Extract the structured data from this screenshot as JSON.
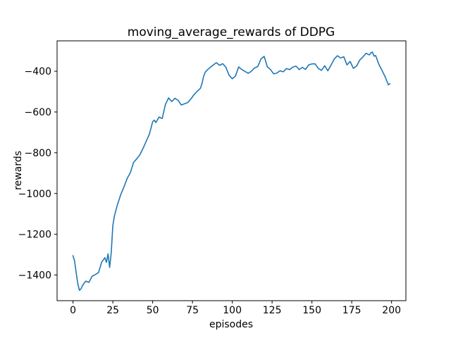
{
  "chart_data": {
    "type": "line",
    "title": "moving_average_rewards of DDPG",
    "xlabel": "episodes",
    "ylabel": "rewards",
    "x_ticks": [
      0,
      25,
      50,
      75,
      100,
      125,
      150,
      175,
      200
    ],
    "y_ticks": [
      -1400,
      -1200,
      -1000,
      -800,
      -600,
      -400
    ],
    "xlim": [
      -10,
      209
    ],
    "ylim": [
      -1526,
      -251
    ],
    "axes_rect": [
      81,
      58,
      576,
      427
    ],
    "grid": false,
    "legend": "none",
    "line_color": "#1f77b4",
    "line_width": 1.6,
    "background_color": "#ffffff",
    "series": [
      {
        "name": "moving_average_rewards",
        "x": [
          0,
          1,
          2,
          3,
          4,
          5,
          6,
          7,
          8,
          10,
          12,
          14,
          16,
          18,
          20,
          21,
          22,
          23,
          24,
          25,
          26,
          28,
          30,
          32,
          34,
          36,
          38,
          40,
          42,
          44,
          46,
          48,
          50,
          51,
          52,
          54,
          56,
          58,
          60,
          62,
          64,
          66,
          68,
          70,
          72,
          74,
          76,
          78,
          80,
          81,
          82,
          83,
          84,
          86,
          88,
          90,
          92,
          94,
          96,
          98,
          100,
          102,
          104,
          106,
          108,
          110,
          112,
          114,
          116,
          118,
          120,
          122,
          124,
          126,
          128,
          130,
          132,
          134,
          136,
          138,
          140,
          142,
          144,
          146,
          148,
          150,
          152,
          154,
          156,
          158,
          160,
          162,
          164,
          166,
          168,
          170,
          172,
          174,
          176,
          178,
          180,
          182,
          184,
          186,
          187,
          188,
          189,
          190,
          192,
          194,
          196,
          198,
          199
        ],
        "y": [
          -1305,
          -1332,
          -1390,
          -1442,
          -1475,
          -1468,
          -1452,
          -1440,
          -1430,
          -1436,
          -1406,
          -1398,
          -1388,
          -1337,
          -1315,
          -1338,
          -1296,
          -1363,
          -1290,
          -1158,
          -1110,
          -1052,
          -1005,
          -968,
          -926,
          -898,
          -848,
          -830,
          -810,
          -778,
          -743,
          -708,
          -648,
          -640,
          -652,
          -625,
          -632,
          -564,
          -531,
          -549,
          -533,
          -543,
          -566,
          -560,
          -554,
          -536,
          -515,
          -498,
          -484,
          -460,
          -425,
          -405,
          -396,
          -382,
          -370,
          -358,
          -371,
          -363,
          -381,
          -420,
          -437,
          -424,
          -379,
          -392,
          -401,
          -410,
          -400,
          -384,
          -377,
          -340,
          -327,
          -378,
          -392,
          -413,
          -409,
          -398,
          -403,
          -387,
          -392,
          -380,
          -375,
          -392,
          -381,
          -391,
          -369,
          -364,
          -364,
          -386,
          -396,
          -373,
          -398,
          -370,
          -340,
          -324,
          -335,
          -329,
          -369,
          -352,
          -386,
          -375,
          -346,
          -330,
          -312,
          -320,
          -310,
          -306,
          -326,
          -323,
          -366,
          -396,
          -428,
          -467,
          -461
        ]
      }
    ]
  }
}
